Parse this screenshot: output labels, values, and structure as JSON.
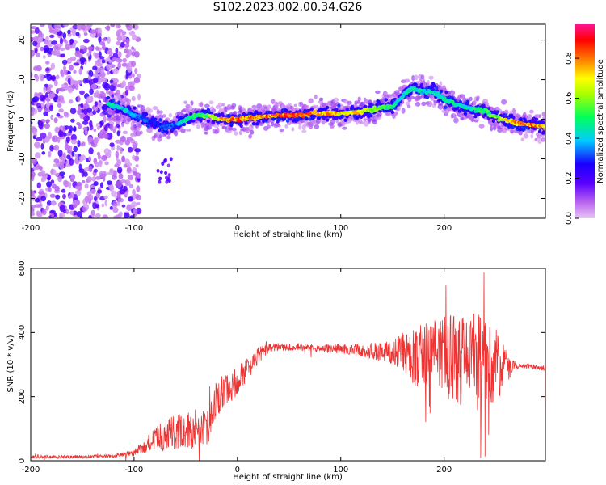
{
  "page": {
    "title": "S102.2023.002.00.34.G26"
  },
  "chart_data": [
    {
      "type": "heatmap",
      "title": "S102.2023.002.00.34.G26",
      "xlabel": "Height of straight line (km)",
      "ylabel": "Frequency (Hz)",
      "xlim": [
        -200,
        298
      ],
      "ylim": [
        -25,
        24
      ],
      "xticks": [
        -200,
        -100,
        0,
        100,
        200
      ],
      "yticks": [
        -20,
        -10,
        0,
        10,
        20
      ],
      "colorbar": {
        "label": "Normalized spectral amplitude",
        "range": [
          0,
          0.97
        ],
        "ticks": [
          0.0,
          0.2,
          0.4,
          0.6,
          0.8
        ],
        "colormap": [
          "#e7c7f6",
          "#8a2be2",
          "#1a00ff",
          "#00ccff",
          "#00ff5a",
          "#ffff00",
          "#ff7a00",
          "#ff0000",
          "#ff1493"
        ]
      },
      "ridge": {
        "x": [
          -125,
          -110,
          -100,
          -90,
          -80,
          -70,
          -60,
          -50,
          -40,
          -30,
          -20,
          -10,
          0,
          20,
          40,
          60,
          70,
          80,
          100,
          120,
          140,
          150,
          160,
          170,
          180,
          190,
          200,
          220,
          240,
          255,
          270,
          285,
          298
        ],
        "y": [
          4,
          2.5,
          1,
          0,
          -1,
          -2,
          -1.5,
          0,
          1,
          1,
          0,
          0,
          0,
          0.5,
          1,
          1,
          1.5,
          1.5,
          1.5,
          2,
          3,
          3,
          6,
          8,
          7,
          7,
          5,
          3,
          2,
          0,
          -1,
          -1.5,
          -2
        ],
        "peak_amplitude": [
          0.5,
          0.45,
          0.4,
          0.35,
          0.3,
          0.35,
          0.35,
          0.5,
          0.55,
          0.6,
          0.75,
          0.85,
          0.9,
          0.85,
          0.9,
          0.95,
          0.9,
          0.85,
          0.8,
          0.75,
          0.6,
          0.55,
          0.45,
          0.5,
          0.45,
          0.5,
          0.5,
          0.5,
          0.55,
          0.7,
          0.85,
          0.9,
          0.8
        ]
      },
      "noise_region": {
        "x": [
          -200,
          -120
        ],
        "freq_range": [
          -25,
          24
        ]
      }
    },
    {
      "type": "line",
      "xlabel": "Height of straight line (km)",
      "ylabel": "SNR (10 * v/v)",
      "xlim": [
        -200,
        298
      ],
      "ylim": [
        0,
        600
      ],
      "xticks": [
        -200,
        -100,
        0,
        100,
        200
      ],
      "yticks": [
        0,
        200,
        400,
        600
      ],
      "series": [
        {
          "color": "#ee3333",
          "envelope_x": [
            -200,
            -150,
            -120,
            -100,
            -90,
            -80,
            -70,
            -60,
            -50,
            -40,
            -30,
            -20,
            -10,
            0,
            10,
            20,
            30,
            40,
            60,
            80,
            100,
            120,
            140,
            150,
            160,
            170,
            180,
            190,
            200,
            210,
            220,
            230,
            240,
            250,
            260,
            270,
            280,
            290,
            298
          ],
          "envelope_mean": [
            12,
            12,
            15,
            25,
            45,
            70,
            80,
            90,
            95,
            90,
            100,
            190,
            220,
            250,
            290,
            330,
            350,
            355,
            355,
            350,
            350,
            345,
            340,
            340,
            340,
            330,
            320,
            320,
            320,
            320,
            320,
            310,
            300,
            300,
            300,
            295,
            295,
            290,
            290
          ],
          "envelope_spread": [
            5,
            5,
            5,
            10,
            20,
            40,
            50,
            60,
            60,
            55,
            60,
            60,
            50,
            45,
            40,
            30,
            15,
            12,
            12,
            12,
            15,
            20,
            30,
            40,
            60,
            90,
            110,
            120,
            130,
            140,
            150,
            150,
            150,
            130,
            60,
            10,
            8,
            8,
            8
          ]
        }
      ]
    }
  ]
}
